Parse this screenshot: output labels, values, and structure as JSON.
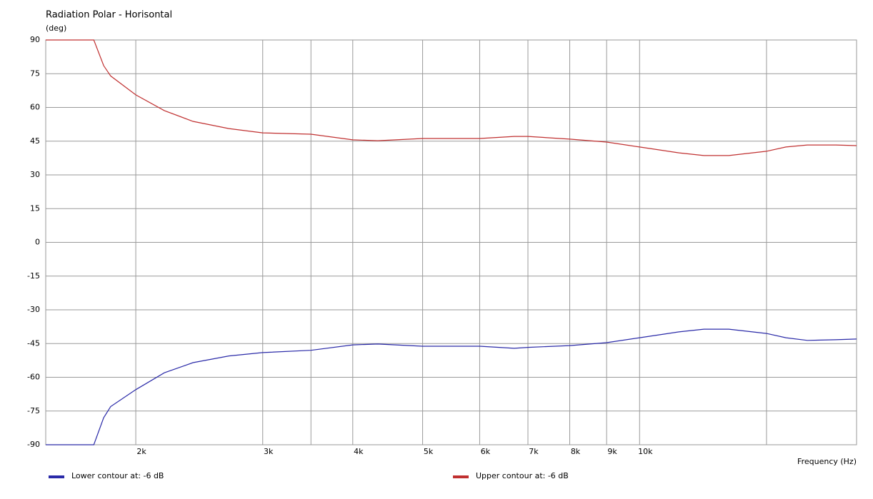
{
  "chart_data": {
    "type": "line",
    "title": "Radiation Polar - Horisontal",
    "y_label": "(deg)",
    "x_label": "Frequency  (Hz)",
    "x_log": true,
    "grid": true,
    "legend": "bottom",
    "x": [
      1500,
      1749,
      1805,
      1846,
      2000,
      2191,
      2401,
      2693,
      3000,
      3500,
      4000,
      4333,
      5000,
      6000,
      6698,
      7000,
      8000,
      9000,
      10000,
      11340,
      12280,
      13300,
      15000,
      15960,
      17090,
      18720,
      20000
    ],
    "series": [
      {
        "name": "Lower contour at: -6 dB",
        "color": "#2a2aa8",
        "values": [
          -90,
          -90,
          -78,
          -73,
          -65.5,
          -58,
          -53.5,
          -50.5,
          -49,
          -48,
          -45.6,
          -45.2,
          -46.2,
          -46.2,
          -47.1,
          -46.7,
          -45.9,
          -44.6,
          -42.4,
          -39.8,
          -38.6,
          -38.6,
          -40.5,
          -42.4,
          -43.6,
          -43.3,
          -43
        ]
      },
      {
        "name": "Upper contour at: -6 dB",
        "color": "#c03030",
        "values": [
          90,
          90,
          78.6,
          74,
          65.6,
          58.6,
          53.8,
          50.6,
          48.7,
          48.1,
          45.6,
          45.2,
          46.2,
          46.2,
          47.1,
          47.1,
          45.9,
          44.6,
          42.4,
          39.8,
          38.6,
          38.6,
          40.5,
          42.4,
          43.3,
          43.3,
          43
        ]
      }
    ],
    "xlim": [
      1500,
      20000
    ],
    "xticks": [
      {
        "value": 2000,
        "label": "2k"
      },
      {
        "value": 3000,
        "label": "3k"
      },
      {
        "value": 4000,
        "label": "4k"
      },
      {
        "value": 5000,
        "label": "5k"
      },
      {
        "value": 6000,
        "label": "6k"
      },
      {
        "value": 7000,
        "label": "7k"
      },
      {
        "value": 8000,
        "label": "8k"
      },
      {
        "value": 9000,
        "label": "9k"
      },
      {
        "value": 10000,
        "label": "10k"
      }
    ],
    "x_extra_grid": [
      3500,
      15000
    ],
    "ylim": [
      -90,
      90
    ],
    "yticks": [
      -90,
      -75,
      -60,
      -45,
      -30,
      -15,
      0,
      15,
      30,
      45,
      60,
      75,
      90
    ]
  }
}
